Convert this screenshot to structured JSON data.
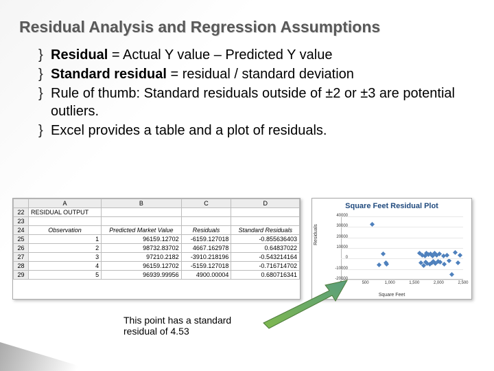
{
  "title": "Residual Analysis and Regression Assumptions",
  "bullets": {
    "b1_bold": "Residual",
    "b1_rest": " = Actual Y value – Predicted Y value",
    "b2_bold": "Standard residual",
    "b2_rest": " = residual / standard deviation",
    "b3": "Rule of thumb: Standard residuals outside of ±2 or ±3 are potential outliers.",
    "b4": "Excel provides a table and a plot of residuals."
  },
  "excel": {
    "col_letters": [
      "A",
      "B",
      "C",
      "D"
    ],
    "row_nums": [
      "22",
      "23",
      "24",
      "25",
      "26",
      "27",
      "28",
      "29"
    ],
    "residual_output_label": "RESIDUAL OUTPUT",
    "headers": [
      "Observation",
      "Predicted Market Value",
      "Residuals",
      "Standard Residuals"
    ],
    "rows": [
      [
        "1",
        "96159.12702",
        "-6159.127018",
        "-0.855636403"
      ],
      [
        "2",
        "98732.83702",
        "4667.162978",
        "0.64837022"
      ],
      [
        "3",
        "97210.2182",
        "-3910.218196",
        "-0.543214164"
      ],
      [
        "4",
        "96159.12702",
        "-5159.127018",
        "-0.716714702"
      ],
      [
        "5",
        "96939.99956",
        "4900.00004",
        "0.680716341"
      ]
    ]
  },
  "chart": {
    "title": "Square Feet  Residual Plot",
    "ylabel": "Residuals",
    "xlabel": "Square Feet",
    "ylim": [
      -20000,
      40000
    ],
    "xlim": [
      0,
      2500
    ],
    "yticks": [
      -20000,
      -10000,
      0,
      10000,
      20000,
      30000,
      40000
    ],
    "xticks": [
      0,
      500,
      1000,
      1500,
      2000,
      2500
    ],
    "ytick_labels": [
      "-20000",
      "-10000",
      "0",
      "10000",
      "20000",
      "30000",
      "40000"
    ],
    "xtick_labels": [
      "0",
      "500",
      "1,000",
      "1,500",
      "2,000",
      "2,500"
    ],
    "point_color": "#4f81bd",
    "points": [
      [
        620,
        32500
      ],
      [
        770,
        -6000
      ],
      [
        850,
        4700
      ],
      [
        900,
        -3900
      ],
      [
        920,
        -5100
      ],
      [
        1600,
        4900
      ],
      [
        1620,
        -4000
      ],
      [
        1650,
        3000
      ],
      [
        1680,
        -6500
      ],
      [
        1700,
        2800
      ],
      [
        1720,
        -3200
      ],
      [
        1740,
        5200
      ],
      [
        1750,
        -4800
      ],
      [
        1770,
        3600
      ],
      [
        1800,
        -5200
      ],
      [
        1820,
        4400
      ],
      [
        1840,
        -3800
      ],
      [
        1860,
        2600
      ],
      [
        1880,
        -2400
      ],
      [
        1900,
        5000
      ],
      [
        1920,
        -4600
      ],
      [
        1950,
        3200
      ],
      [
        1970,
        -2800
      ],
      [
        2000,
        4200
      ],
      [
        2020,
        -3600
      ],
      [
        2080,
        2800
      ],
      [
        2100,
        -5000
      ],
      [
        2150,
        3400
      ],
      [
        2200,
        -2200
      ],
      [
        2250,
        -15000
      ],
      [
        2320,
        6000
      ],
      [
        2380,
        -4000
      ],
      [
        2420,
        3000
      ]
    ]
  },
  "caption": {
    "line1": "This point has a standard",
    "line2": "residual of 4.53"
  }
}
